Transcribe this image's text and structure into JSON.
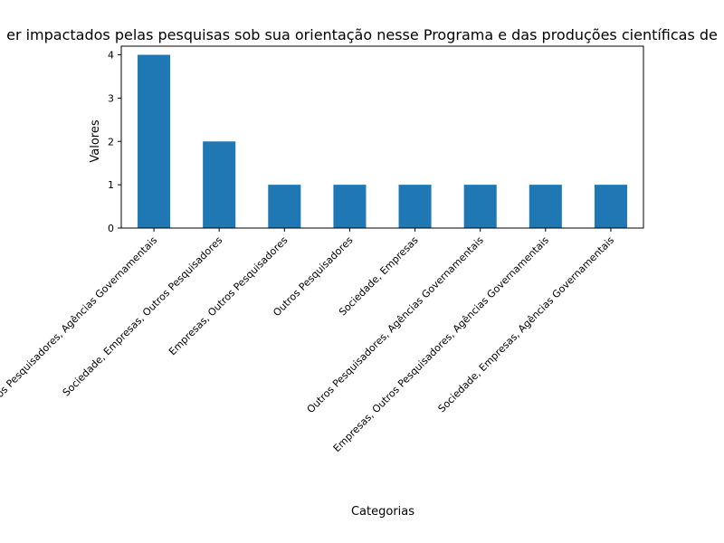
{
  "chart_data": {
    "type": "bar",
    "title": "er impactados pelas pesquisas sob sua orientação nesse Programa e das produções científicas de",
    "xlabel": "Categorias",
    "ylabel": "Valores",
    "categories": [
      "Sociedade, Empresas, Outros Pesquisadores, Agências Governamentais",
      "Sociedade, Empresas, Outros Pesquisadores",
      "Empresas, Outros Pesquisadores",
      "Outros Pesquisadores",
      "Sociedade, Empresas",
      "Outros Pesquisadores, Agências Governamentais",
      "Empresas, Outros Pesquisadores, Agências Governamentais",
      "Sociedade, Empresas, Agências Governamentais"
    ],
    "values": [
      4,
      2,
      1,
      1,
      1,
      1,
      1,
      1
    ],
    "ylim": [
      0,
      4.2
    ],
    "yticks": [
      0,
      1,
      2,
      3,
      4
    ],
    "bar_color": "#1f77b4",
    "grid": false,
    "legend": "none"
  }
}
